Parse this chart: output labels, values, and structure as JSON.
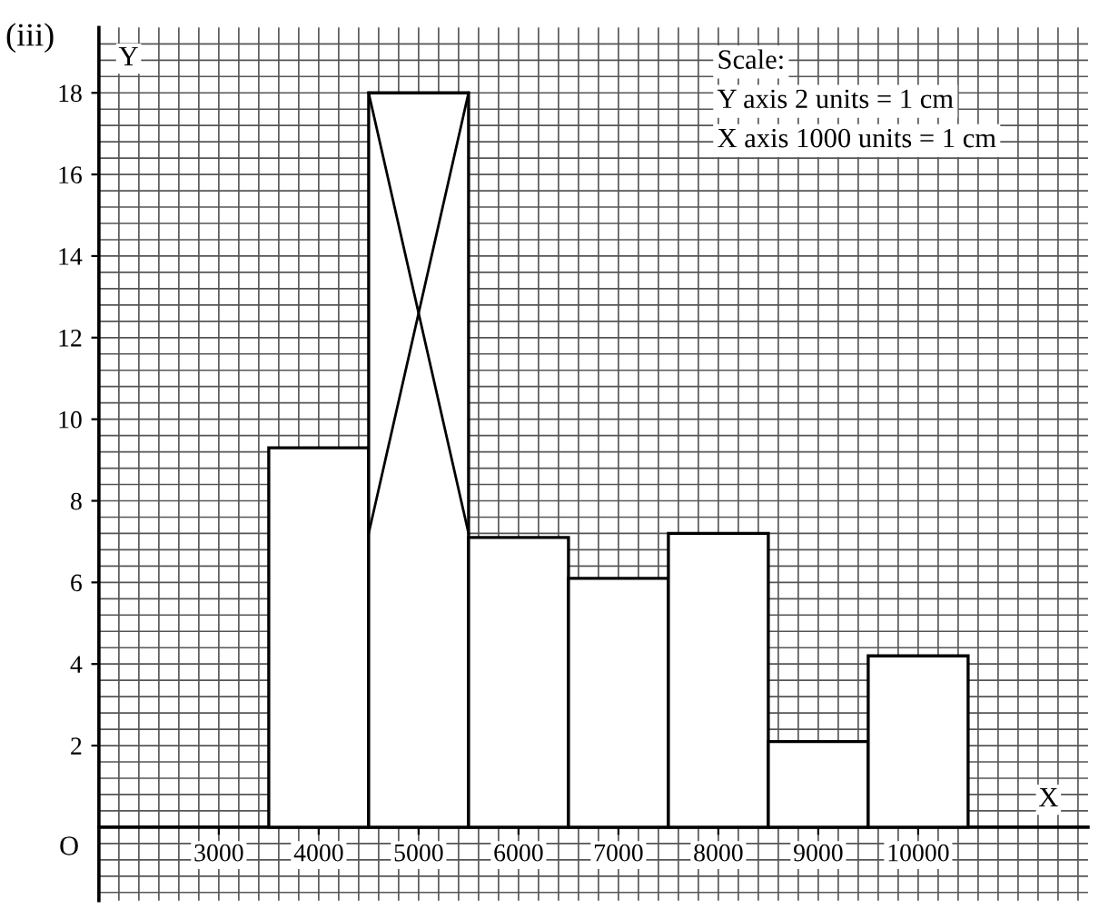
{
  "chart_data": {
    "type": "histogram",
    "title": "(iii)",
    "xlabel": "X",
    "ylabel": "Y",
    "bins": [
      3500,
      4500,
      5500,
      6500,
      7500,
      8500,
      9500,
      10500
    ],
    "values": [
      9.3,
      18,
      7.1,
      6.1,
      7.2,
      2.1,
      4.2
    ],
    "color": "#ffffff",
    "xlim": [
      1800,
      11700
    ],
    "ylim": [
      -1.8,
      19.6
    ],
    "xticks": [
      3000,
      4000,
      5000,
      6000,
      7000,
      8000,
      9000,
      10000
    ],
    "yticks": [
      2,
      4,
      6,
      8,
      10,
      12,
      14,
      16,
      18
    ],
    "grid": true,
    "annotations": [
      "O",
      "Scale:",
      "Y axis 2 units = 1 cm",
      "X axis 1000 units = 1 cm"
    ]
  }
}
